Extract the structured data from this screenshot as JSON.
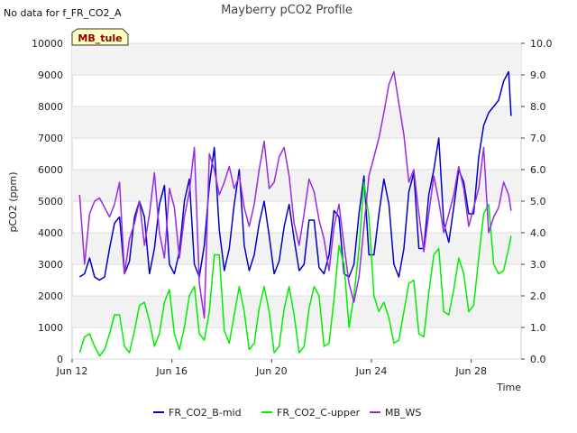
{
  "note": "No data for f_FR_CO2_A",
  "badge": "MB_tule",
  "chart_data": {
    "type": "line",
    "title": "Mayberry pCO2 Profile",
    "xlabel": "Time",
    "ylabel": "pCO2 (ppm)",
    "ylim": [
      0,
      10000
    ],
    "y2lim": [
      0,
      10
    ],
    "xlim_days": [
      12,
      30
    ],
    "x_ticks": [
      {
        "label": "Jun 12",
        "day": 12
      },
      {
        "label": "Jun 16",
        "day": 16
      },
      {
        "label": "Jun 20",
        "day": 20
      },
      {
        "label": "Jun 24",
        "day": 24
      },
      {
        "label": "Jun 28",
        "day": 28
      }
    ],
    "y_ticks": [
      "0",
      "1000",
      "2000",
      "3000",
      "4000",
      "5000",
      "6000",
      "7000",
      "8000",
      "9000",
      "10000"
    ],
    "y2_ticks": [
      "0.0",
      "1.0",
      "2.0",
      "3.0",
      "4.0",
      "5.0",
      "6.0",
      "7.0",
      "8.0",
      "9.0",
      "10.0"
    ],
    "grid": true,
    "legend_position": "bottom",
    "series": [
      {
        "name": "FR_CO2_B-mid",
        "color": "#0000cc",
        "axis": "left",
        "x": [
          12.3,
          12.5,
          12.7,
          12.9,
          13.1,
          13.3,
          13.5,
          13.7,
          13.9,
          14.1,
          14.3,
          14.5,
          14.7,
          14.9,
          15.1,
          15.3,
          15.5,
          15.7,
          15.9,
          16.1,
          16.3,
          16.5,
          16.7,
          16.9,
          17.1,
          17.3,
          17.5,
          17.7,
          17.9,
          18.1,
          18.3,
          18.5,
          18.7,
          18.9,
          19.1,
          19.3,
          19.5,
          19.7,
          19.9,
          20.1,
          20.3,
          20.5,
          20.7,
          20.9,
          21.1,
          21.3,
          21.5,
          21.7,
          21.9,
          22.1,
          22.3,
          22.5,
          22.7,
          22.9,
          23.1,
          23.3,
          23.5,
          23.7,
          23.9,
          24.1,
          24.3,
          24.5,
          24.7,
          24.9,
          25.1,
          25.3,
          25.5,
          25.7,
          25.9,
          26.1,
          26.3,
          26.5,
          26.7,
          26.9,
          27.1,
          27.3,
          27.5,
          27.7,
          27.9,
          28.1,
          28.3,
          28.5,
          28.7,
          28.9,
          29.1,
          29.3,
          29.5,
          29.6
        ],
        "values": [
          2600,
          2700,
          3200,
          2600,
          2500,
          2600,
          3500,
          4300,
          4500,
          2700,
          3100,
          4500,
          5000,
          4500,
          2700,
          3500,
          4900,
          5500,
          3000,
          2700,
          3400,
          5000,
          5700,
          3000,
          2600,
          3600,
          5500,
          6700,
          4100,
          2800,
          3500,
          4900,
          6000,
          3600,
          2800,
          3300,
          4300,
          5000,
          3900,
          2700,
          3100,
          4200,
          4900,
          3800,
          2800,
          3000,
          4400,
          4400,
          2900,
          2700,
          3300,
          4700,
          4500,
          2700,
          2600,
          3000,
          4600,
          5800,
          3300,
          3300,
          4600,
          5700,
          4900,
          3000,
          2600,
          3500,
          5300,
          5900,
          3500,
          3500,
          5200,
          6000,
          7000,
          4300,
          3700,
          4800,
          6000,
          5600,
          4600,
          4600,
          6400,
          7400,
          7800,
          8000,
          8200,
          8800,
          9100,
          7700
        ]
      },
      {
        "name": "FR_CO2_C-upper",
        "color": "#00ee00",
        "axis": "left",
        "x": [
          12.3,
          12.5,
          12.7,
          12.9,
          13.1,
          13.3,
          13.5,
          13.7,
          13.9,
          14.1,
          14.3,
          14.5,
          14.7,
          14.9,
          15.1,
          15.3,
          15.5,
          15.7,
          15.9,
          16.1,
          16.3,
          16.5,
          16.7,
          16.9,
          17.1,
          17.3,
          17.5,
          17.7,
          17.9,
          18.1,
          18.3,
          18.5,
          18.7,
          18.9,
          19.1,
          19.3,
          19.5,
          19.7,
          19.9,
          20.1,
          20.3,
          20.5,
          20.7,
          20.9,
          21.1,
          21.3,
          21.5,
          21.7,
          21.9,
          22.1,
          22.3,
          22.5,
          22.7,
          22.9,
          23.1,
          23.3,
          23.5,
          23.7,
          23.9,
          24.1,
          24.3,
          24.5,
          24.7,
          24.9,
          25.1,
          25.3,
          25.5,
          25.7,
          25.9,
          26.1,
          26.3,
          26.5,
          26.7,
          26.9,
          27.1,
          27.3,
          27.5,
          27.7,
          27.9,
          28.1,
          28.3,
          28.5,
          28.7,
          28.9,
          29.1,
          29.3,
          29.5,
          29.6
        ],
        "values": [
          200,
          700,
          800,
          400,
          100,
          300,
          800,
          1400,
          1400,
          400,
          200,
          900,
          1700,
          1800,
          1200,
          400,
          800,
          1800,
          2200,
          800,
          300,
          1000,
          2000,
          2300,
          800,
          600,
          1500,
          3300,
          3300,
          900,
          500,
          1400,
          2300,
          1500,
          300,
          500,
          1600,
          2300,
          1500,
          200,
          400,
          1600,
          2300,
          1400,
          200,
          400,
          1600,
          2300,
          2000,
          400,
          500,
          1900,
          3600,
          3000,
          1000,
          2000,
          3500,
          5600,
          4500,
          2000,
          1500,
          1800,
          1300,
          500,
          600,
          1500,
          2400,
          2500,
          800,
          700,
          2100,
          3300,
          3500,
          1500,
          1400,
          2200,
          3200,
          2700,
          1500,
          1700,
          3200,
          4600,
          4900,
          3000,
          2700,
          2800,
          3500,
          3900
        ]
      },
      {
        "name": "MB_WS",
        "color": "#9a2be2",
        "axis": "right",
        "x": [
          12.3,
          12.5,
          12.7,
          12.9,
          13.1,
          13.3,
          13.5,
          13.7,
          13.9,
          14.1,
          14.3,
          14.5,
          14.7,
          14.9,
          15.1,
          15.3,
          15.5,
          15.7,
          15.9,
          16.1,
          16.3,
          16.5,
          16.7,
          16.9,
          17.1,
          17.3,
          17.5,
          17.7,
          17.9,
          18.1,
          18.3,
          18.5,
          18.7,
          18.9,
          19.1,
          19.3,
          19.5,
          19.7,
          19.9,
          20.1,
          20.3,
          20.5,
          20.7,
          20.9,
          21.1,
          21.3,
          21.5,
          21.7,
          21.9,
          22.1,
          22.3,
          22.5,
          22.7,
          22.9,
          23.1,
          23.3,
          23.5,
          23.7,
          23.9,
          24.1,
          24.3,
          24.5,
          24.7,
          24.9,
          25.1,
          25.3,
          25.5,
          25.7,
          25.9,
          26.1,
          26.3,
          26.5,
          26.7,
          26.9,
          27.1,
          27.3,
          27.5,
          27.7,
          27.9,
          28.1,
          28.3,
          28.5,
          28.7,
          28.9,
          29.1,
          29.3,
          29.5,
          29.6
        ],
        "values": [
          5.2,
          3.0,
          4.6,
          5.0,
          5.1,
          4.8,
          4.5,
          4.9,
          5.6,
          2.7,
          3.8,
          4.3,
          5.0,
          3.6,
          4.6,
          5.9,
          4.0,
          3.2,
          5.4,
          4.8,
          3.2,
          4.5,
          5.3,
          6.7,
          2.4,
          1.3,
          6.5,
          6.0,
          5.2,
          5.6,
          6.1,
          5.4,
          5.8,
          4.8,
          4.2,
          4.9,
          6.0,
          6.9,
          5.4,
          5.6,
          6.4,
          6.7,
          5.8,
          4.3,
          3.6,
          4.6,
          5.7,
          5.3,
          4.4,
          3.8,
          2.8,
          4.2,
          4.9,
          3.6,
          2.4,
          1.8,
          2.6,
          4.2,
          5.8,
          6.4,
          7.0,
          7.8,
          8.7,
          9.1,
          8.1,
          7.1,
          5.6,
          6.0,
          4.6,
          3.4,
          4.6,
          5.8,
          5.0,
          4.0,
          4.6,
          5.2,
          6.1,
          5.4,
          4.2,
          4.8,
          5.4,
          6.7,
          4.0,
          4.5,
          4.8,
          5.6,
          5.2,
          4.7
        ]
      }
    ]
  }
}
